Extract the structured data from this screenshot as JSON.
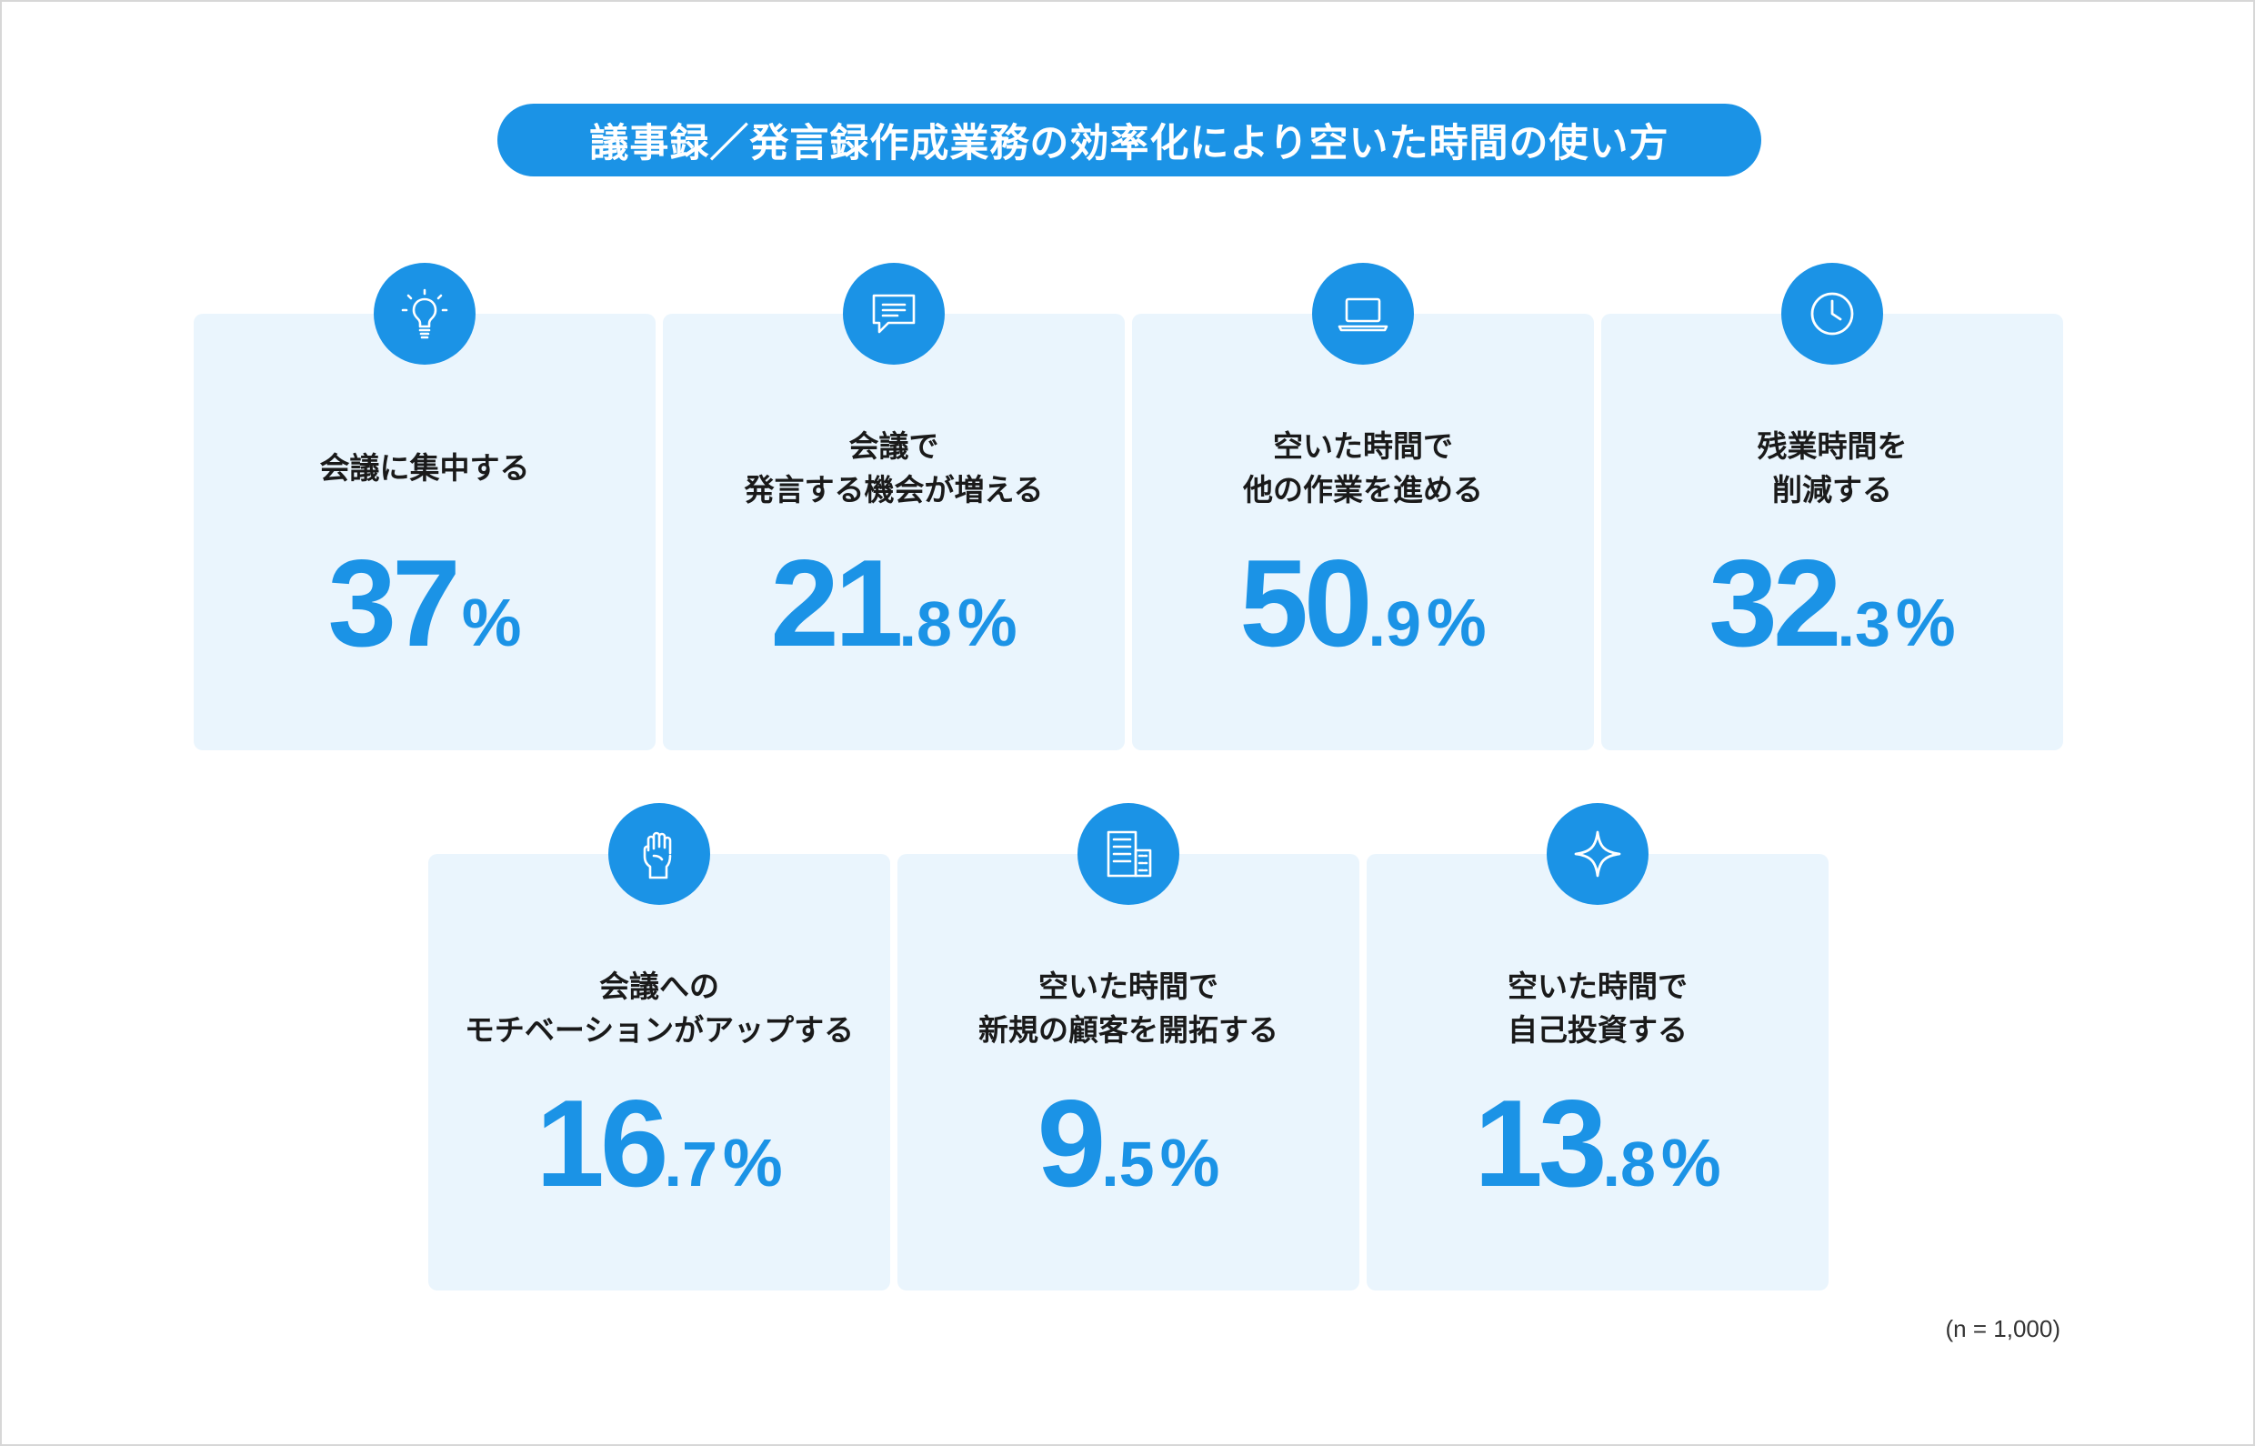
{
  "title": "議事録／発言録作成業務の効率化により空いた時間の使い方",
  "accent_color": "#1b93e6",
  "card_color": "#eaf5fd",
  "cards": [
    {
      "icon": "lightbulb-icon",
      "line1": "会議に集中する",
      "line2": "",
      "int": "37",
      "dec": "",
      "sym": "%"
    },
    {
      "icon": "chat-bubble-icon",
      "line1": "会議で",
      "line2": "発言する機会が増える",
      "int": "21",
      "dec": ".8",
      "sym": "%"
    },
    {
      "icon": "laptop-icon",
      "line1": "空いた時間で",
      "line2": "他の作業を進める",
      "int": "50",
      "dec": ".9",
      "sym": "%"
    },
    {
      "icon": "clock-icon",
      "line1": "残業時間を",
      "line2": "削減する",
      "int": "32",
      "dec": ".3",
      "sym": "%"
    },
    {
      "icon": "raised-fist-icon",
      "line1": "会議への",
      "line2": "モチベーションがアップする",
      "int": "16",
      "dec": ".7",
      "sym": "%"
    },
    {
      "icon": "office-building-icon",
      "line1": "空いた時間で",
      "line2": "新規の顧客を開拓する",
      "int": "9",
      "dec": ".5",
      "sym": "%"
    },
    {
      "icon": "sparkle-icon",
      "line1": "空いた時間で",
      "line2": "自己投資する",
      "int": "13",
      "dec": ".8",
      "sym": "%"
    }
  ],
  "sample_note": "(n = 1,000)"
}
